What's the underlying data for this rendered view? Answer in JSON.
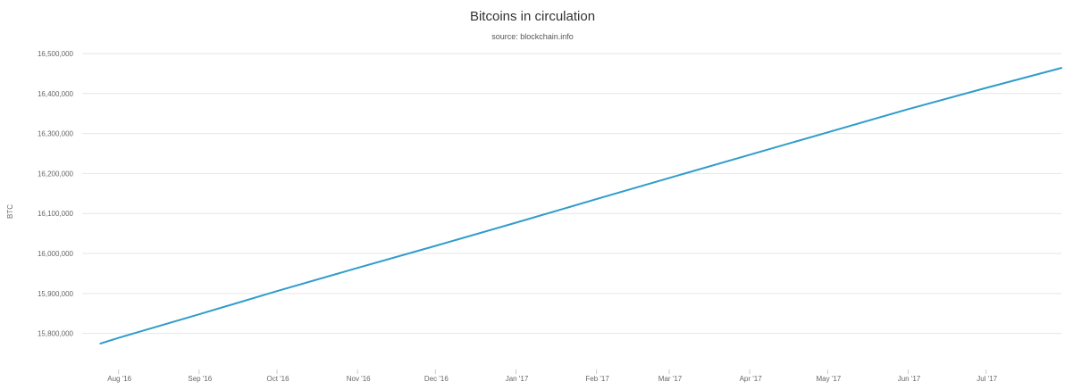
{
  "chart_data": {
    "type": "line",
    "title": "Bitcoins in circulation",
    "subtitle": "source: blockchain.info",
    "xlabel": "",
    "ylabel": "BTC",
    "x_ticks": [
      "Aug '16",
      "Sep '16",
      "Oct '16",
      "Nov '16",
      "Dec '16",
      "Jan '17",
      "Feb '17",
      "Mar '17",
      "Apr '17",
      "May '17",
      "Jun '17",
      "Jul '17"
    ],
    "y_ticks": [
      "15,800,000",
      "15,900,000",
      "16,000,000",
      "16,100,000",
      "16,200,000",
      "16,300,000",
      "16,400,000",
      "16,500,000"
    ],
    "ylim": [
      15710000,
      16500000
    ],
    "grid": true,
    "series": [
      {
        "x": [
          "2016-07-25",
          "2016-08-01",
          "2016-09-01",
          "2016-10-01",
          "2016-11-01",
          "2016-12-01",
          "2017-01-01",
          "2017-02-01",
          "2017-03-01",
          "2017-04-01",
          "2017-05-01",
          "2017-06-01",
          "2017-07-01",
          "2017-07-30"
        ],
        "values": [
          15775000,
          15789000,
          15848000,
          15906000,
          15964000,
          16019000,
          16077000,
          16136000,
          16189000,
          16247000,
          16303000,
          16361000,
          16414000,
          16464000
        ]
      }
    ],
    "colors": {
      "line": "#2f9ccb",
      "grid": "#e6e6e6",
      "tick_text": "#666666"
    }
  }
}
